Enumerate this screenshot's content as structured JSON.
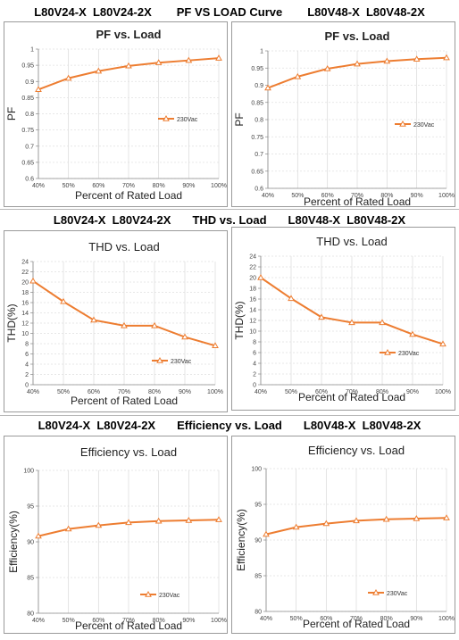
{
  "bands": [
    {
      "left": "L80V24-X  L80V24-2X",
      "center": "PF VS LOAD Curve",
      "right": "L80V48-X  L80V48-2X"
    },
    {
      "left": "L80V24-X  L80V24-2X",
      "center": "THD vs. Load",
      "right": "L80V48-X  L80V48-2X"
    },
    {
      "left": "L80V24-X  L80V24-2X",
      "center": "Efficiency vs. Load",
      "right": "L80V48-X  L80V48-2X"
    }
  ],
  "chart_data": [
    {
      "type": "line",
      "title": "PF vs. Load",
      "xlabel": "Percent of Rated Load",
      "ylabel": "PF",
      "categories": [
        "40%",
        "50%",
        "60%",
        "70%",
        "80%",
        "90%",
        "100%"
      ],
      "ylim": [
        0.6,
        1
      ],
      "yticks": [
        "0.6",
        "0.65",
        "0.7",
        "0.75",
        "0.8",
        "0.85",
        "0.9",
        "0.95",
        "1"
      ],
      "grid": true,
      "legend": "right",
      "series": [
        {
          "name": "230Vac",
          "values": [
            0.875,
            0.91,
            0.932,
            0.948,
            0.958,
            0.965,
            0.972
          ]
        }
      ],
      "color": "#ed7d31"
    },
    {
      "type": "line",
      "title": "PF vs. Load",
      "xlabel": "Percent of Rated Load",
      "ylabel": "PF",
      "categories": [
        "40%",
        "50%",
        "60%",
        "70%",
        "80%",
        "90%",
        "100%"
      ],
      "ylim": [
        0.6,
        1
      ],
      "yticks": [
        "0.6",
        "0.65",
        "0.7",
        "0.75",
        "0.8",
        "0.85",
        "0.9",
        "0.95",
        "1"
      ],
      "grid": true,
      "legend": "right",
      "series": [
        {
          "name": "230Vac",
          "values": [
            0.892,
            0.925,
            0.948,
            0.962,
            0.97,
            0.976,
            0.98
          ]
        }
      ],
      "color": "#ed7d31"
    },
    {
      "type": "line",
      "title": "THD vs. Load",
      "xlabel": "Percent of Rated Load",
      "ylabel": "THD(%)",
      "categories": [
        "40%",
        "50%",
        "60%",
        "70%",
        "80%",
        "90%",
        "100%"
      ],
      "ylim": [
        0,
        24
      ],
      "yticks": [
        "0",
        "2",
        "4",
        "6",
        "8",
        "10",
        "12",
        "14",
        "16",
        "18",
        "20",
        "22",
        "24"
      ],
      "grid": true,
      "legend": "bottom-right",
      "series": [
        {
          "name": "230Vac",
          "values": [
            20.2,
            16.2,
            12.6,
            11.5,
            11.5,
            9.3,
            7.6
          ]
        }
      ],
      "color": "#ed7d31"
    },
    {
      "type": "line",
      "title": "THD vs. Load",
      "xlabel": "Percent of Rated Load",
      "ylabel": "THD(%)",
      "categories": [
        "40%",
        "50%",
        "60%",
        "70%",
        "80%",
        "90%",
        "100%"
      ],
      "ylim": [
        0,
        24
      ],
      "yticks": [
        "0",
        "2",
        "4",
        "6",
        "8",
        "10",
        "12",
        "14",
        "16",
        "18",
        "20",
        "22",
        "24"
      ],
      "grid": true,
      "legend": "bottom-right",
      "series": [
        {
          "name": "230Vac",
          "values": [
            20.0,
            16.1,
            12.6,
            11.6,
            11.6,
            9.4,
            7.6
          ]
        }
      ],
      "color": "#ed7d31"
    },
    {
      "type": "line",
      "title": "Efficiency vs. Load",
      "xlabel": "Percent of Rated Load",
      "ylabel": "Efficiency(%)",
      "categories": [
        "40%",
        "50%",
        "60%",
        "70%",
        "80%",
        "90%",
        "100%"
      ],
      "ylim": [
        80,
        100
      ],
      "yticks": [
        "80",
        "85",
        "90",
        "95",
        "100"
      ],
      "grid": true,
      "legend": "bottom-right",
      "series": [
        {
          "name": "230Vac",
          "values": [
            90.8,
            91.8,
            92.3,
            92.7,
            92.9,
            93.0,
            93.1
          ]
        }
      ],
      "color": "#ed7d31"
    },
    {
      "type": "line",
      "title": "Efficiency vs. Load",
      "xlabel": "Percent of Rated Load",
      "ylabel": "Efficiency(%)",
      "categories": [
        "40%",
        "50%",
        "60%",
        "70%",
        "80%",
        "90%",
        "100%"
      ],
      "ylim": [
        80,
        100
      ],
      "yticks": [
        "80",
        "85",
        "90",
        "95",
        "100"
      ],
      "grid": true,
      "legend": "bottom-right",
      "series": [
        {
          "name": "230Vac",
          "values": [
            90.8,
            91.8,
            92.3,
            92.7,
            92.9,
            93.0,
            93.1
          ]
        }
      ],
      "color": "#ed7d31"
    }
  ]
}
